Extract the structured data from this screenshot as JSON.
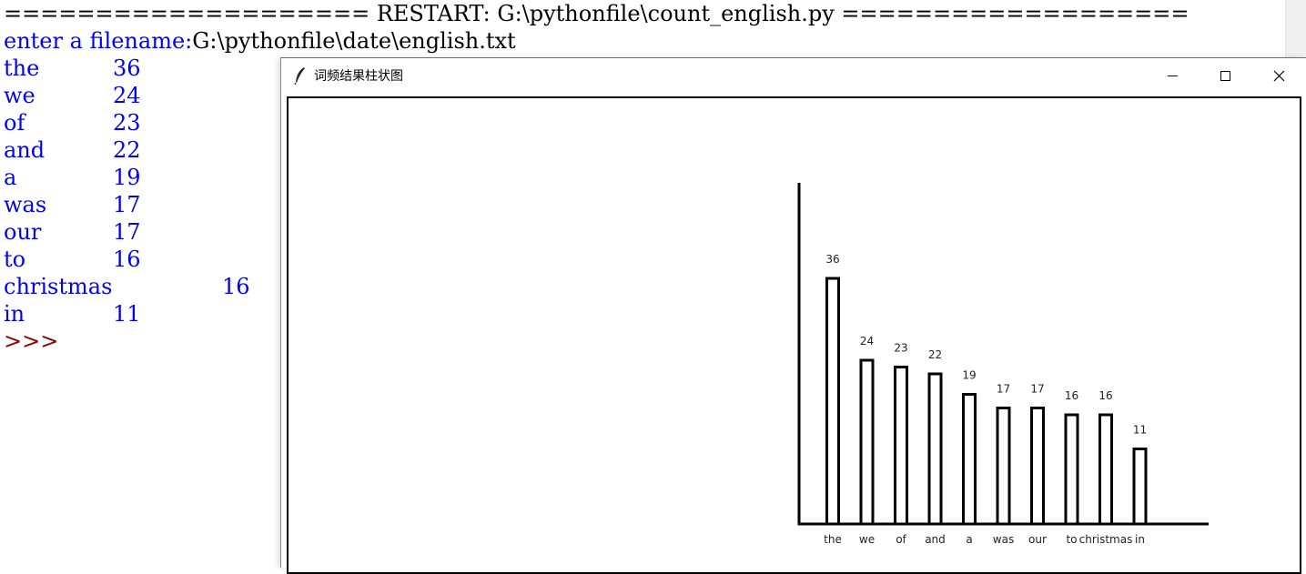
{
  "shell": {
    "restart_line": "==================== RESTART: G:\\pythonfile\\count_english.py ===================",
    "prompt_label": "enter a filename:",
    "filename": "G:\\pythonfile\\date\\english.txt",
    "results": [
      {
        "word": "the",
        "count": "36"
      },
      {
        "word": "we",
        "count": "24"
      },
      {
        "word": "of",
        "count": "23"
      },
      {
        "word": "and",
        "count": "22"
      },
      {
        "word": "a",
        "count": "19"
      },
      {
        "word": "was",
        "count": "17"
      },
      {
        "word": "our",
        "count": "17"
      },
      {
        "word": "to",
        "count": "16"
      },
      {
        "word": "christmas",
        "count": "16"
      },
      {
        "word": "in",
        "count": "11"
      }
    ],
    "prompt": ">>>"
  },
  "tk_window": {
    "title": "词频结果柱状图",
    "controls": {
      "minimize": "minimize-icon",
      "maximize": "maximize-icon",
      "close": "close-icon"
    }
  },
  "chart_data": {
    "type": "bar",
    "categories": [
      "the",
      "we",
      "of",
      "and",
      "a",
      "was",
      "our",
      "to",
      "christmas",
      "in"
    ],
    "values": [
      36,
      24,
      23,
      22,
      19,
      17,
      17,
      16,
      16,
      11
    ],
    "value_labels": [
      "36",
      "24",
      "23",
      "22",
      "19",
      "17",
      "17",
      "16",
      "16",
      "11"
    ],
    "title": "",
    "xlabel": "",
    "ylabel": "",
    "ylim": [
      0,
      36
    ],
    "grid": false,
    "legend": "none"
  },
  "colors": {
    "output_text": "#0000ff",
    "prompt": "#8b0000",
    "bar_outline": "#000000"
  }
}
